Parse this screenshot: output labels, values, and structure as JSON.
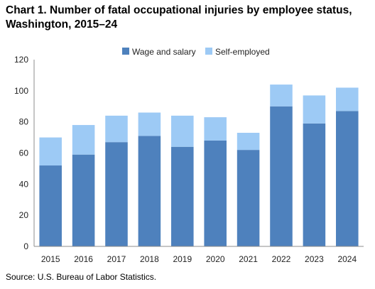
{
  "header": {
    "title": "Chart 1. Number of fatal occupational injuries by employee status, Washington, 2015–24"
  },
  "footer": {
    "source": "Source: U.S. Bureau  of Labor Statistics."
  },
  "chart_data": {
    "type": "bar",
    "stacked": true,
    "title": "Chart 1. Number of fatal occupational injuries by employee status, Washington, 2015–24",
    "xlabel": "",
    "ylabel": "",
    "categories": [
      "2015",
      "2016",
      "2017",
      "2018",
      "2019",
      "2020",
      "2021",
      "2022",
      "2023",
      "2024"
    ],
    "series": [
      {
        "name": "Wage and salary",
        "color": "#4e81bd",
        "values": [
          52,
          59,
          67,
          71,
          64,
          68,
          62,
          90,
          79,
          87
        ]
      },
      {
        "name": "Self-employed",
        "color": "#9dcaf5",
        "values": [
          18,
          19,
          17,
          15,
          20,
          15,
          11,
          14,
          18,
          15
        ]
      }
    ],
    "ylim": [
      0,
      120
    ],
    "yticks": [
      0,
      20,
      40,
      60,
      80,
      100,
      120
    ],
    "grid": false,
    "legend_position": "top-center"
  }
}
